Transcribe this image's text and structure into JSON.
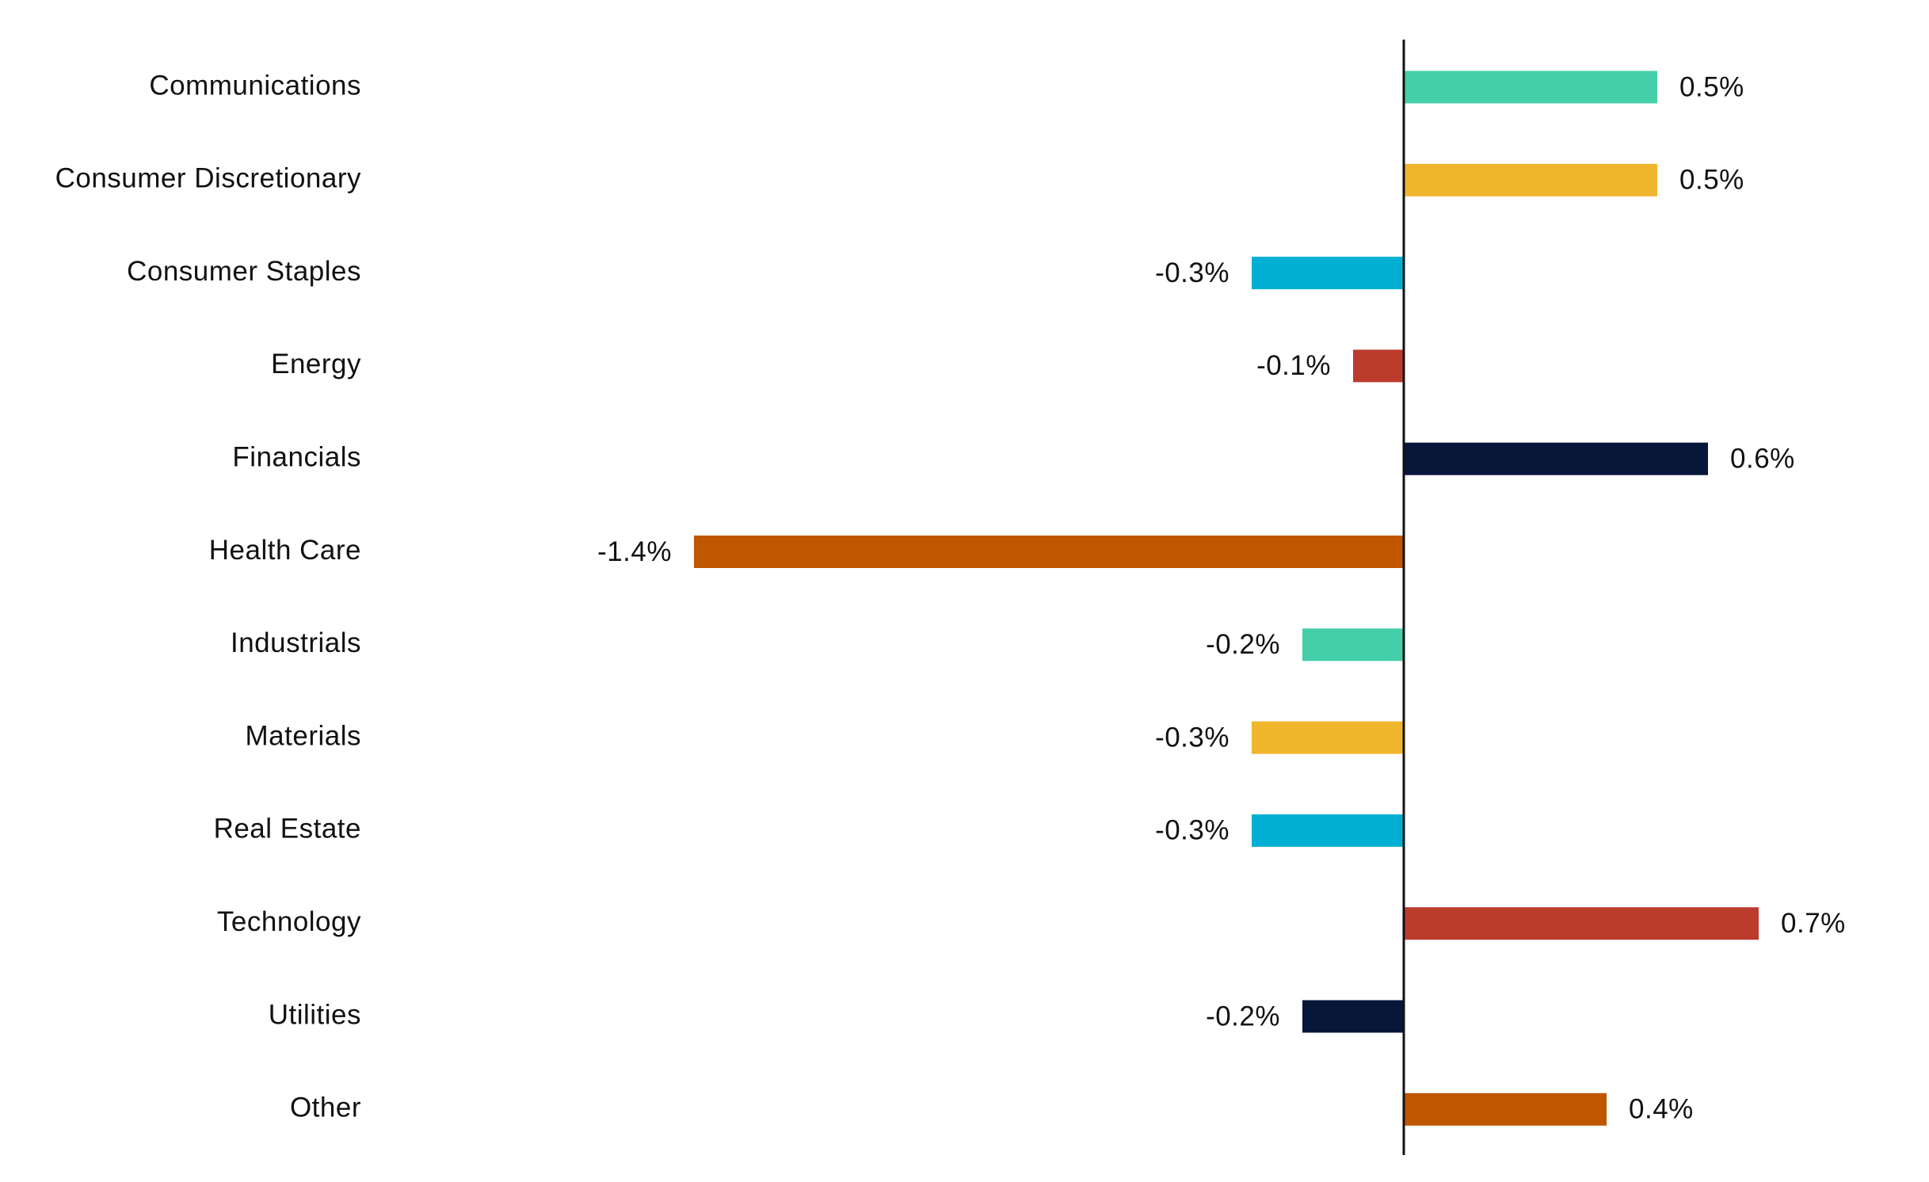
{
  "chart_data": {
    "type": "hbar",
    "categories": [
      "Communications",
      "Consumer Discretionary",
      "Consumer Staples",
      "Energy",
      "Financials",
      "Health Care",
      "Industrials",
      "Materials",
      "Real Estate",
      "Technology",
      "Utilities",
      "Other"
    ],
    "values": [
      0.5,
      0.5,
      -0.3,
      -0.1,
      0.6,
      -1.4,
      -0.2,
      -0.3,
      -0.3,
      0.7,
      -0.2,
      0.4
    ],
    "value_labels": [
      "0.5%",
      "0.5%",
      "-0.3%",
      "-0.1%",
      "0.6%",
      "-1.4%",
      "-0.2%",
      "-0.3%",
      "-0.3%",
      "0.7%",
      "-0.2%",
      "0.4%"
    ],
    "colors": [
      "#44cfa9",
      "#efb52d",
      "#00afd3",
      "#bb3b2d",
      "#07173a",
      "#c05600",
      "#44cfa9",
      "#efb52d",
      "#00afd3",
      "#bb3b2d",
      "#07173a",
      "#c05600"
    ],
    "xlim": [
      -1.6,
      0.8
    ]
  }
}
